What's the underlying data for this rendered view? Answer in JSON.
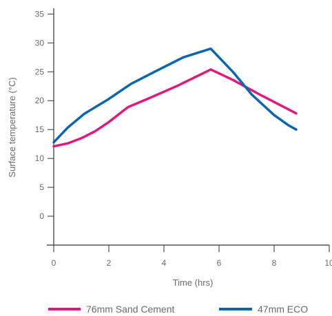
{
  "chart_data": {
    "type": "line",
    "xlabel": "Time (hrs)",
    "ylabel": "Surface temperature (°C)",
    "xlim": [
      0,
      10
    ],
    "ylim": [
      -5,
      36
    ],
    "x_ticks": [
      0,
      2,
      4,
      6,
      8,
      10
    ],
    "y_ticks": [
      0,
      5,
      10,
      15,
      20,
      25,
      30,
      35
    ],
    "grid": false,
    "legend_position": "bottom",
    "series": [
      {
        "name": "76mm Sand Cement",
        "color": "#e0197d",
        "points": [
          [
            0,
            12.1
          ],
          [
            0.5,
            12.6
          ],
          [
            1,
            13.5
          ],
          [
            1.5,
            14.7
          ],
          [
            2,
            16.3
          ],
          [
            2.4,
            17.8
          ],
          [
            2.7,
            18.9
          ],
          [
            3.5,
            20.5
          ],
          [
            4.5,
            22.6
          ],
          [
            5.7,
            25.4
          ],
          [
            6.5,
            23.6
          ],
          [
            7.5,
            21.0
          ],
          [
            8.8,
            17.8
          ]
        ]
      },
      {
        "name": "47mm ECO",
        "color": "#0a66b0",
        "points": [
          [
            0,
            12.8
          ],
          [
            0.5,
            15.3
          ],
          [
            1.1,
            17.7
          ],
          [
            2,
            20.3
          ],
          [
            2.8,
            22.9
          ],
          [
            3.7,
            25.1
          ],
          [
            4.7,
            27.5
          ],
          [
            5.7,
            29.0
          ],
          [
            6.5,
            25.0
          ],
          [
            7.2,
            21.0
          ],
          [
            8,
            17.5
          ],
          [
            8.5,
            15.8
          ],
          [
            8.8,
            15.0
          ]
        ]
      }
    ]
  }
}
